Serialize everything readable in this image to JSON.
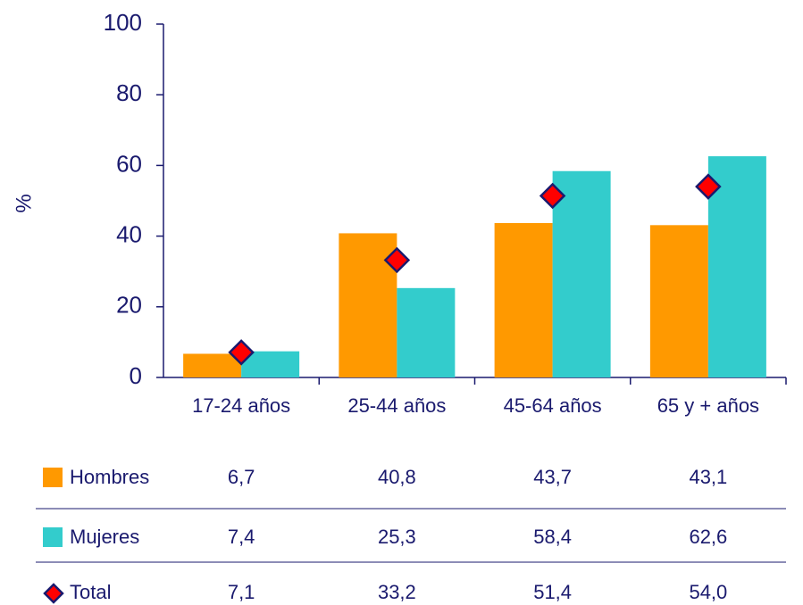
{
  "chart_data": {
    "type": "bar",
    "ylabel": "%",
    "categories": [
      "17-24 años",
      "25-44 años",
      "45-64 años",
      "65 y  + años"
    ],
    "series": [
      {
        "name": "Hombres",
        "color": "#ff9900",
        "values": [
          6.7,
          40.8,
          43.7,
          43.1
        ],
        "value_labels": [
          "6,7",
          "40,8",
          "43,7",
          "43,1"
        ]
      },
      {
        "name": "Mujeres",
        "color": "#33cccc",
        "values": [
          7.4,
          25.3,
          58.4,
          62.6
        ],
        "value_labels": [
          "7,4",
          "25,3",
          "58,4",
          "62,6"
        ]
      },
      {
        "name": "Total",
        "color": "#ff0000",
        "marker": "diamond",
        "values": [
          7.1,
          33.2,
          51.4,
          54.0
        ],
        "value_labels": [
          "7,1",
          "33,2",
          "51,4",
          "54,0"
        ]
      }
    ],
    "ylim": [
      0,
      100
    ],
    "yticks": [
      0,
      20,
      40,
      60,
      80,
      100
    ],
    "grid": false
  }
}
